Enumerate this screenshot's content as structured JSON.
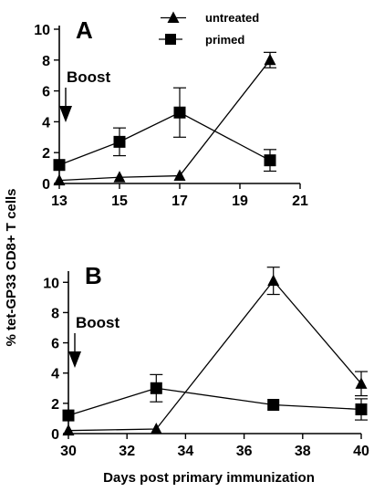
{
  "figure": {
    "ylabel": "% tet-GP33 CD8+ T cells",
    "xlabel": "Days post primary immunization"
  },
  "legend": {
    "untreated": "untreated",
    "primed": "primed"
  },
  "colors": {
    "ink": "#000000",
    "background": "#ffffff"
  },
  "chart_data": [
    {
      "type": "line",
      "panel": "A",
      "xlim": [
        13,
        21
      ],
      "ylim": [
        0,
        10
      ],
      "xticks": [
        13,
        15,
        17,
        19,
        21
      ],
      "yticks": [
        0,
        2,
        4,
        6,
        8,
        10
      ],
      "annotation": "Boost",
      "annotation_x": 13,
      "legend_position": "top",
      "series": [
        {
          "name": "untreated",
          "marker": "triangle",
          "x": [
            13,
            15,
            17,
            20
          ],
          "y": [
            0.2,
            0.4,
            0.5,
            8.0
          ],
          "err": [
            0,
            0,
            0,
            0.5
          ]
        },
        {
          "name": "primed",
          "marker": "square",
          "x": [
            13,
            15,
            17,
            20
          ],
          "y": [
            1.2,
            2.7,
            4.6,
            1.5
          ],
          "err": [
            0,
            0.9,
            1.6,
            0.7
          ]
        }
      ]
    },
    {
      "type": "line",
      "panel": "B",
      "xlim": [
        30,
        40
      ],
      "ylim": [
        0,
        10.5
      ],
      "xticks": [
        30,
        32,
        34,
        36,
        38,
        40
      ],
      "yticks": [
        0,
        2,
        4,
        6,
        8,
        10
      ],
      "annotation": "Boost",
      "annotation_x": 30,
      "series": [
        {
          "name": "untreated",
          "marker": "triangle",
          "x": [
            30,
            33,
            37,
            40
          ],
          "y": [
            0.2,
            0.3,
            10.1,
            3.3
          ],
          "err": [
            0,
            0,
            0.9,
            0.8
          ]
        },
        {
          "name": "primed",
          "marker": "square",
          "x": [
            30,
            33,
            37,
            40
          ],
          "y": [
            1.2,
            3.0,
            1.9,
            1.6
          ],
          "err": [
            0,
            0.9,
            0,
            0.7
          ]
        }
      ]
    }
  ]
}
